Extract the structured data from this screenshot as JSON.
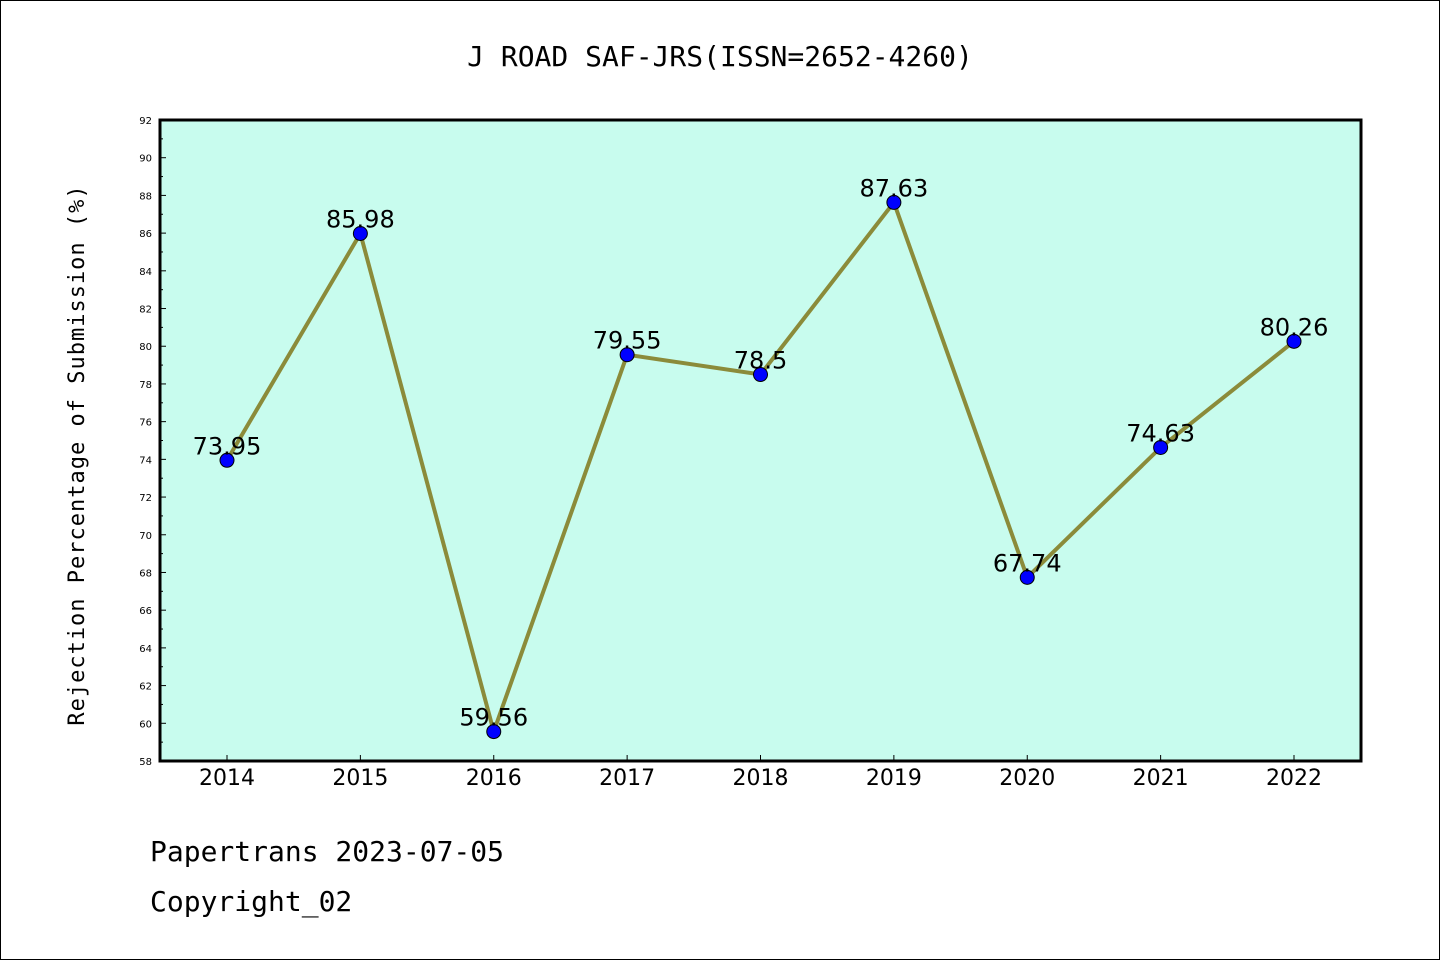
{
  "chart_data": {
    "type": "line",
    "title": "J ROAD SAF-JRS(ISSN=2652-4260)",
    "xlabel": "",
    "ylabel": "Rejection Percentage of Submission (%)",
    "categories": [
      "2014",
      "2015",
      "2016",
      "2017",
      "2018",
      "2019",
      "2020",
      "2021",
      "2022"
    ],
    "series": [
      {
        "values": [
          73.95,
          85.98,
          59.56,
          79.55,
          78.5,
          87.63,
          67.74,
          74.63,
          80.26
        ],
        "labels": [
          "73.95",
          "85.98",
          "59.56",
          "79.55",
          "78.5",
          "87.63",
          "67.74",
          "74.63",
          "80.26"
        ]
      }
    ],
    "ylim": [
      58,
      92
    ],
    "yticks": [
      58,
      60,
      62,
      64,
      66,
      68,
      70,
      72,
      74,
      76,
      78,
      80,
      82,
      84,
      86,
      88,
      90,
      92
    ],
    "grid": false,
    "colors": {
      "plot_background": "#c8fcee",
      "line": "#8b8b3a",
      "marker": "#0000ff"
    }
  },
  "footer": {
    "line1": "Papertrans 2023-07-05",
    "line2": "Copyright_02"
  }
}
